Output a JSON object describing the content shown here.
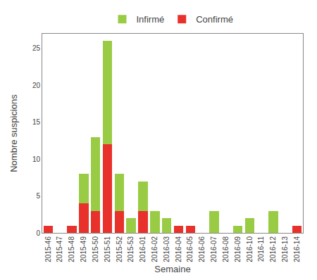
{
  "chart_data": {
    "type": "bar",
    "stacked": true,
    "xlabel": "Semaine",
    "ylabel": "Nombre suspicions",
    "categories": [
      "2015-46",
      "2015-47",
      "2015-48",
      "2015-49",
      "2015-50",
      "2015-51",
      "2015-52",
      "2015-53",
      "2016-01",
      "2016-02",
      "2016-03",
      "2016-04",
      "2016-05",
      "2016-06",
      "2016-07",
      "2016-08",
      "2016-09",
      "2016-10",
      "2016-11",
      "2016-12",
      "2016-13",
      "2016-14"
    ],
    "series": [
      {
        "name": "Confirmé",
        "color": "#e8312a",
        "values": [
          1,
          0,
          1,
          4,
          3,
          12,
          3,
          0,
          3,
          0,
          0,
          1,
          1,
          0,
          0,
          0,
          0,
          0,
          0,
          0,
          0,
          1
        ]
      },
      {
        "name": "Infirmé",
        "color": "#99cc44",
        "values": [
          0,
          0,
          0,
          4,
          10,
          14,
          5,
          2,
          4,
          3,
          2,
          0,
          0,
          0,
          3,
          0,
          1,
          2,
          0,
          3,
          0,
          0
        ]
      }
    ],
    "ylim": [
      0,
      27
    ],
    "yticks": [
      0,
      5,
      10,
      15,
      20,
      25
    ],
    "grid": false,
    "legend": "top"
  }
}
